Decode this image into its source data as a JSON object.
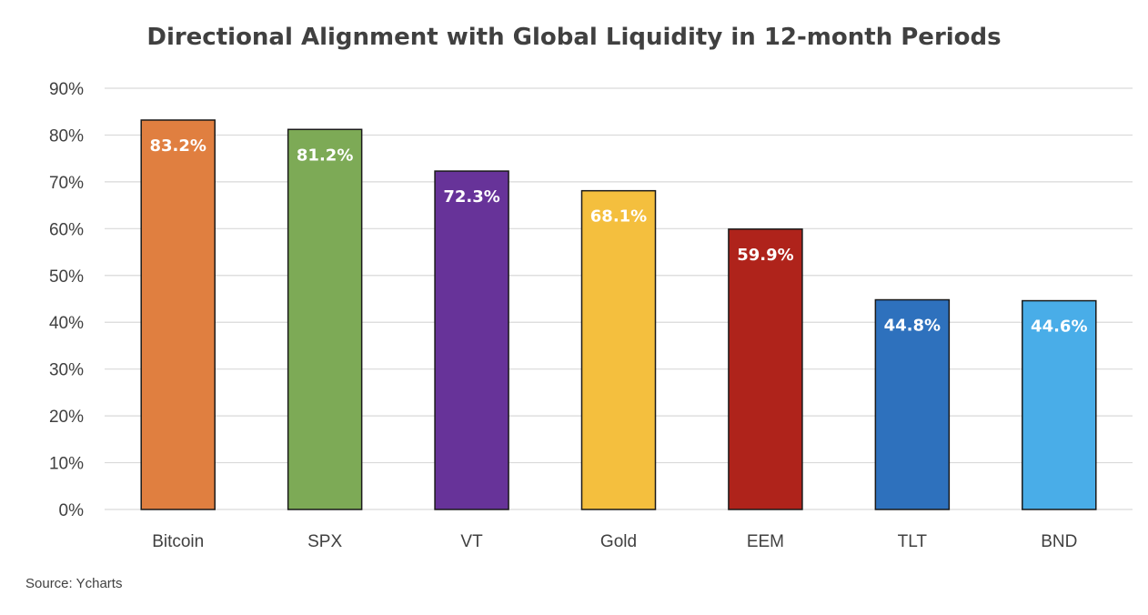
{
  "chart_data": {
    "type": "bar",
    "title": "Directional Alignment with Global Liquidity in 12-month Periods",
    "categories": [
      "Bitcoin",
      "SPX",
      "VT",
      "Gold",
      "EEM",
      "TLT",
      "BND"
    ],
    "values": [
      83.2,
      81.2,
      72.3,
      68.1,
      59.9,
      44.8,
      44.6
    ],
    "data_labels": [
      "83.2%",
      "81.2%",
      "72.3%",
      "68.1%",
      "59.9%",
      "44.8%",
      "44.6%"
    ],
    "colors": [
      "#E07F40",
      "#7DAA56",
      "#673399",
      "#F4BF3E",
      "#AF231B",
      "#2E71BD",
      "#49ADE8"
    ],
    "y_ticks": [
      0,
      10,
      20,
      30,
      40,
      50,
      60,
      70,
      80,
      90
    ],
    "y_tick_labels": [
      "0%",
      "10%",
      "20%",
      "30%",
      "40%",
      "50%",
      "60%",
      "70%",
      "80%",
      "90%"
    ],
    "ylim": [
      0,
      90
    ],
    "xlabel": "",
    "ylabel": "",
    "grid": true,
    "legend": "none"
  },
  "source": "Source: Ycharts"
}
